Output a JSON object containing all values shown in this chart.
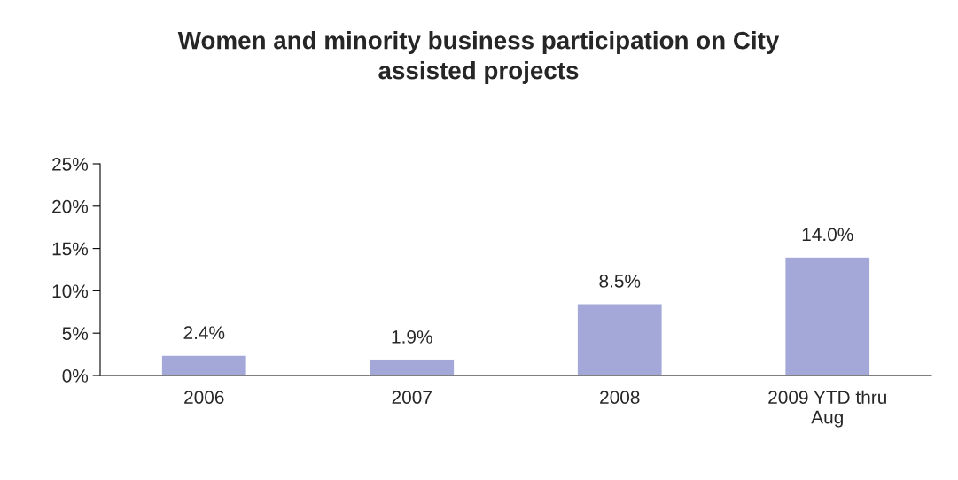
{
  "chart_data": {
    "type": "bar",
    "title": "Women and minority business participation on City\nassisted projects",
    "categories": [
      "2006",
      "2007",
      "2008",
      "2009 YTD thru\nAug"
    ],
    "values": [
      2.4,
      1.9,
      8.5,
      14.0
    ],
    "value_labels": [
      "2.4%",
      "1.9%",
      "8.5%",
      "14.0%"
    ],
    "color": "#a4a8d8",
    "ylim": [
      0,
      25
    ],
    "yticks": [
      {
        "value": 0,
        "label": "0%"
      },
      {
        "value": 5,
        "label": "5%"
      },
      {
        "value": 10,
        "label": "10%"
      },
      {
        "value": 15,
        "label": "15%"
      },
      {
        "value": 20,
        "label": "20%"
      },
      {
        "value": 25,
        "label": "25%"
      }
    ],
    "grid": false,
    "legend": false
  }
}
